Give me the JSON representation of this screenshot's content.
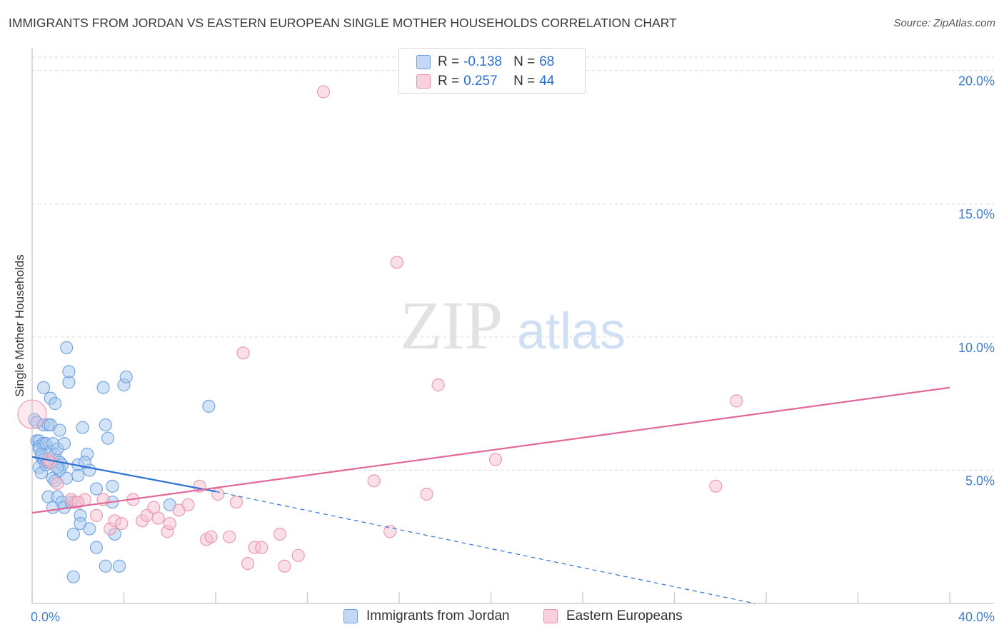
{
  "header": {
    "title": "IMMIGRANTS FROM JORDAN VS EASTERN EUROPEAN SINGLE MOTHER HOUSEHOLDS CORRELATION CHART",
    "source": "Source: ZipAtlas.com"
  },
  "watermark": {
    "zip": "ZIP",
    "atlas": "atlas"
  },
  "legend": {
    "rows": [
      {
        "r_label": "R =",
        "r_value": "-0.138",
        "n_label": "N =",
        "n_value": "68"
      },
      {
        "r_label": "R =",
        "r_value": "0.257",
        "n_label": "N =",
        "n_value": "44"
      }
    ]
  },
  "colors": {
    "blue_fill": "#a8c8f0",
    "blue_stroke": "#6a9ee0",
    "blue_line": "#2f72d6",
    "pink_fill": "#f6bfd0",
    "pink_stroke": "#e892b0",
    "pink_line": "#e0689a",
    "tick_text": "#3f7fd0",
    "grid": "#d9d9d9"
  },
  "chart_data": {
    "type": "scatter",
    "title": "IMMIGRANTS FROM JORDAN VS EASTERN EUROPEAN SINGLE MOTHER HOUSEHOLDS CORRELATION CHART",
    "xlabel": "",
    "ylabel": "Single Mother Households",
    "xlim": [
      0,
      40
    ],
    "ylim": [
      0,
      20.5
    ],
    "x_tick_labels": [
      "0.0%",
      "40.0%"
    ],
    "y_ticks": [
      5,
      10,
      15,
      20
    ],
    "y_tick_labels": [
      "5.0%",
      "10.0%",
      "15.0%",
      "20.0%"
    ],
    "series": [
      {
        "name": "Immigrants from Jordan",
        "color": "blue",
        "r": -0.138,
        "n": 68,
        "trend": {
          "x0": 0.0,
          "y0": 5.5,
          "x1": 8.0,
          "y1": 4.2,
          "dash_x1": 31.5,
          "dash_y1": 0.0
        },
        "points": [
          [
            0.1,
            6.9
          ],
          [
            0.2,
            6.8
          ],
          [
            0.2,
            6.1
          ],
          [
            0.3,
            6.1
          ],
          [
            0.3,
            5.9
          ],
          [
            0.3,
            5.8
          ],
          [
            0.3,
            5.1
          ],
          [
            0.4,
            4.9
          ],
          [
            0.4,
            5.5
          ],
          [
            0.5,
            8.1
          ],
          [
            0.5,
            6.7
          ],
          [
            0.5,
            6.0
          ],
          [
            0.5,
            5.4
          ],
          [
            0.6,
            6.0
          ],
          [
            0.6,
            5.2
          ],
          [
            0.7,
            6.7
          ],
          [
            0.7,
            5.3
          ],
          [
            0.7,
            4.0
          ],
          [
            0.8,
            7.7
          ],
          [
            0.8,
            6.7
          ],
          [
            0.8,
            5.7
          ],
          [
            0.9,
            6.0
          ],
          [
            0.9,
            4.7
          ],
          [
            0.9,
            3.6
          ],
          [
            1.0,
            7.5
          ],
          [
            1.0,
            5.6
          ],
          [
            1.0,
            4.6
          ],
          [
            1.1,
            5.8
          ],
          [
            1.1,
            4.0
          ],
          [
            1.2,
            6.5
          ],
          [
            1.2,
            5.3
          ],
          [
            1.2,
            5.0
          ],
          [
            1.3,
            5.2
          ],
          [
            1.3,
            3.8
          ],
          [
            1.4,
            6.0
          ],
          [
            1.4,
            3.6
          ],
          [
            1.5,
            9.6
          ],
          [
            1.5,
            4.7
          ],
          [
            1.6,
            8.3
          ],
          [
            1.6,
            8.7
          ],
          [
            1.7,
            3.8
          ],
          [
            1.8,
            2.6
          ],
          [
            1.8,
            1.0
          ],
          [
            2.0,
            5.2
          ],
          [
            2.0,
            4.8
          ],
          [
            2.1,
            3.3
          ],
          [
            2.1,
            3.0
          ],
          [
            2.2,
            6.6
          ],
          [
            2.4,
            5.6
          ],
          [
            2.5,
            2.8
          ],
          [
            2.5,
            5.0
          ],
          [
            2.8,
            4.3
          ],
          [
            2.8,
            2.1
          ],
          [
            3.1,
            8.1
          ],
          [
            3.2,
            6.7
          ],
          [
            3.3,
            6.2
          ],
          [
            3.2,
            1.4
          ],
          [
            3.5,
            4.4
          ],
          [
            3.5,
            3.8
          ],
          [
            3.6,
            2.6
          ],
          [
            3.8,
            1.4
          ],
          [
            4.0,
            8.2
          ],
          [
            4.1,
            8.5
          ],
          [
            6.0,
            3.7
          ],
          [
            7.7,
            7.4
          ],
          [
            0.4,
            5.6
          ],
          [
            1.1,
            5.1
          ],
          [
            2.3,
            5.3
          ]
        ]
      },
      {
        "name": "Eastern Europeans",
        "color": "pink",
        "r": 0.257,
        "n": 44,
        "trend": {
          "x0": 0.0,
          "y0": 3.4,
          "x1": 40.0,
          "y1": 8.1
        },
        "points": [
          [
            0.0,
            7.1
          ],
          [
            0.8,
            5.3
          ],
          [
            1.1,
            4.5
          ],
          [
            1.7,
            3.9
          ],
          [
            1.9,
            3.8
          ],
          [
            2.3,
            3.9
          ],
          [
            2.8,
            3.3
          ],
          [
            3.1,
            3.9
          ],
          [
            3.4,
            2.8
          ],
          [
            3.6,
            3.1
          ],
          [
            3.9,
            3.0
          ],
          [
            4.4,
            3.9
          ],
          [
            4.8,
            3.1
          ],
          [
            5.0,
            3.3
          ],
          [
            5.3,
            3.6
          ],
          [
            5.5,
            3.2
          ],
          [
            5.9,
            2.7
          ],
          [
            6.0,
            3.0
          ],
          [
            6.4,
            3.5
          ],
          [
            6.8,
            3.7
          ],
          [
            7.3,
            4.4
          ],
          [
            7.6,
            2.4
          ],
          [
            7.8,
            2.5
          ],
          [
            8.1,
            4.1
          ],
          [
            8.6,
            2.5
          ],
          [
            8.9,
            3.8
          ],
          [
            9.2,
            9.4
          ],
          [
            9.4,
            1.5
          ],
          [
            9.7,
            2.1
          ],
          [
            10.0,
            2.1
          ],
          [
            10.8,
            2.6
          ],
          [
            11.0,
            1.4
          ],
          [
            11.6,
            1.8
          ],
          [
            12.7,
            19.2
          ],
          [
            14.9,
            4.6
          ],
          [
            15.6,
            2.7
          ],
          [
            15.9,
            12.8
          ],
          [
            17.2,
            4.1
          ],
          [
            17.7,
            8.2
          ],
          [
            20.2,
            5.4
          ],
          [
            29.8,
            4.4
          ],
          [
            30.7,
            7.6
          ],
          [
            0.7,
            5.4
          ],
          [
            2.0,
            3.8
          ]
        ]
      }
    ]
  },
  "bottom_legend": {
    "items": [
      {
        "label": "Immigrants from Jordan"
      },
      {
        "label": "Eastern Europeans"
      }
    ]
  }
}
